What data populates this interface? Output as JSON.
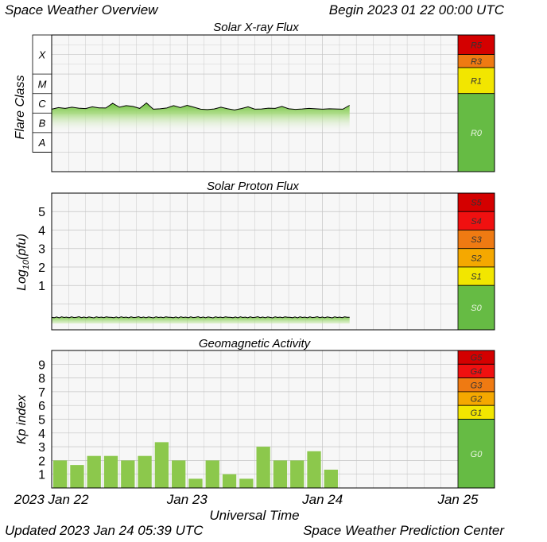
{
  "header": {
    "title": "Space Weather Overview",
    "begin": "Begin 2023 01 22 00:00 UTC"
  },
  "footer": {
    "updated": "Updated 2023 Jan 24 05:39 UTC",
    "center": "Space Weather Prediction Center"
  },
  "colors": {
    "plot_bg": "#f7f7f7",
    "grid": "#d0d0d0",
    "data_fill": "#8cce4c",
    "data_line": "#000000",
    "level_r0": "#66bb44",
    "level_1": "#f2e600",
    "level_2": "#f5a800",
    "level_3": "#ef7a12",
    "level_4": "#f01010",
    "level_5": "#d40000",
    "kp_bar": "#8cc84c"
  },
  "chart_data": [
    {
      "type": "area",
      "title": "Solar X-ray Flux",
      "ylabel": "Flare Class",
      "scale": "log",
      "classes": [
        "X",
        "M",
        "C",
        "B",
        "A"
      ],
      "x_unit": "days since 2023 Jan 22 00:00 UTC",
      "xlim": [
        0,
        3
      ],
      "series": [
        {
          "x": [
            0,
            0.05,
            0.1,
            0.15,
            0.2,
            0.25,
            0.3,
            0.35,
            0.4,
            0.45,
            0.5,
            0.55,
            0.6,
            0.65,
            0.7,
            0.75,
            0.8,
            0.85,
            0.9,
            0.95,
            1.0,
            1.05,
            1.1,
            1.15,
            1.2,
            1.25,
            1.3,
            1.35,
            1.4,
            1.45,
            1.5,
            1.55,
            1.6,
            1.65,
            1.7,
            1.75,
            1.8,
            1.85,
            1.9,
            1.95,
            2.0,
            2.05,
            2.1,
            2.15,
            2.2
          ],
          "log_flux": [
            -5.8,
            -5.72,
            -5.76,
            -5.7,
            -5.75,
            -5.77,
            -5.68,
            -5.73,
            -5.74,
            -5.5,
            -5.7,
            -5.62,
            -5.66,
            -5.76,
            -5.48,
            -5.8,
            -5.78,
            -5.74,
            -5.62,
            -5.72,
            -5.6,
            -5.7,
            -5.8,
            -5.82,
            -5.79,
            -5.7,
            -5.78,
            -5.84,
            -5.77,
            -5.68,
            -5.8,
            -5.79,
            -5.75,
            -5.76,
            -5.66,
            -5.78,
            -5.81,
            -5.79,
            -5.76,
            -5.78,
            -5.8,
            -5.78,
            -5.79,
            -5.8,
            -5.6
          ]
        }
      ],
      "levels": [
        {
          "label": "R5",
          "color": "#d40000"
        },
        {
          "label": "R3",
          "color": "#ef7a12"
        },
        {
          "label": "R1",
          "color": "#f2e600"
        },
        {
          "label": "R0",
          "color": "#66bb44"
        }
      ]
    },
    {
      "type": "area",
      "title": "Solar Proton Flux",
      "ylabel": "Log10(pfu)",
      "yticks": [
        "5",
        "4",
        "3",
        "2",
        "1"
      ],
      "xlim": [
        0,
        3
      ],
      "series": [
        {
          "x": [
            0,
            0.5,
            1.0,
            1.5,
            2.0,
            2.2
          ],
          "log_pfu": [
            -0.72,
            -0.71,
            -0.72,
            -0.71,
            -0.72,
            -0.72
          ]
        }
      ],
      "levels": [
        {
          "label": "S5",
          "color": "#d40000"
        },
        {
          "label": "S4",
          "color": "#f01010"
        },
        {
          "label": "S3",
          "color": "#ef7a12"
        },
        {
          "label": "S2",
          "color": "#f5a800"
        },
        {
          "label": "S1",
          "color": "#f2e600"
        },
        {
          "label": "S0",
          "color": "#66bb44"
        }
      ]
    },
    {
      "type": "bar",
      "title": "Geomagnetic Activity",
      "ylabel": "Kp index",
      "yticks": [
        "9",
        "8",
        "7",
        "6",
        "5",
        "4",
        "3",
        "2",
        "1"
      ],
      "ylim": [
        0,
        9
      ],
      "xlabel": "Universal Time",
      "xticks": [
        "2023 Jan 22",
        "Jan 23",
        "Jan 24",
        "Jan 25"
      ],
      "kp_values": [
        2.0,
        1.67,
        2.33,
        2.33,
        2.0,
        2.33,
        3.33,
        2.0,
        0.67,
        2.0,
        1.0,
        0.67,
        3.0,
        2.0,
        2.0,
        2.67,
        1.33
      ],
      "levels": [
        {
          "label": "G5",
          "color": "#d40000"
        },
        {
          "label": "G4",
          "color": "#f01010"
        },
        {
          "label": "G3",
          "color": "#ef7a12"
        },
        {
          "label": "G2",
          "color": "#f5a800"
        },
        {
          "label": "G1",
          "color": "#f2e600"
        },
        {
          "label": "G0",
          "color": "#66bb44"
        }
      ]
    }
  ]
}
